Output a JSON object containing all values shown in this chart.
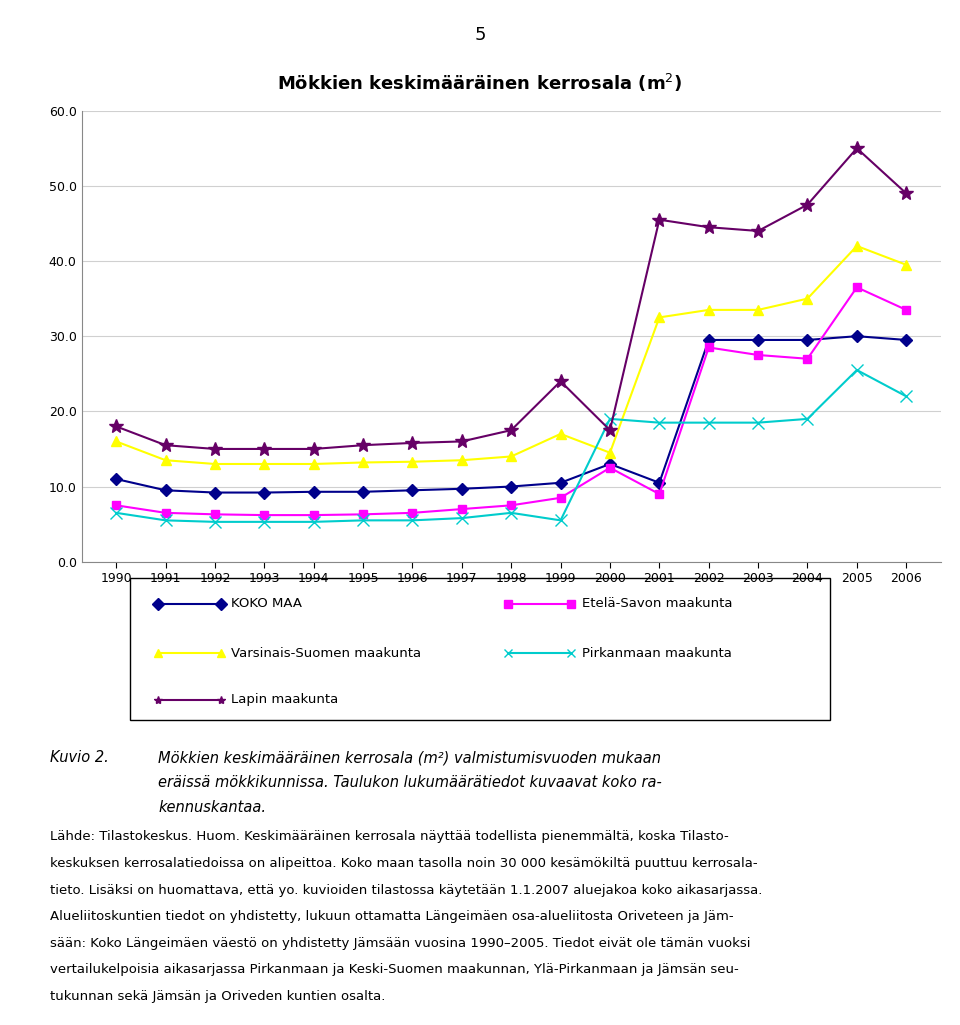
{
  "title_part1": "Mökkien keskimääräinen kerrosala (m",
  "title_sup": "2",
  "title_part2": ")",
  "page_number": "5",
  "years": [
    1990,
    1991,
    1992,
    1993,
    1994,
    1995,
    1996,
    1997,
    1998,
    1999,
    2000,
    2001,
    2002,
    2003,
    2004,
    2005,
    2006
  ],
  "series": {
    "KOKO MAA": [
      11.0,
      9.5,
      9.2,
      9.2,
      9.3,
      9.3,
      9.5,
      9.7,
      10.0,
      10.5,
      13.0,
      10.5,
      29.5,
      29.5,
      29.5,
      30.0,
      29.5
    ],
    "Etelä-Savon maakunta": [
      7.5,
      6.5,
      6.3,
      6.2,
      6.2,
      6.3,
      6.5,
      7.0,
      7.5,
      8.5,
      12.5,
      9.0,
      28.5,
      27.5,
      27.0,
      36.5,
      33.5
    ],
    "Varsinais-Suomen maakunta": [
      16.0,
      13.5,
      13.0,
      13.0,
      13.0,
      13.2,
      13.3,
      13.5,
      14.0,
      17.0,
      14.5,
      32.5,
      33.5,
      33.5,
      35.0,
      42.0,
      39.5
    ],
    "Pirkanmaan maakunta": [
      6.5,
      5.5,
      5.3,
      5.3,
      5.3,
      5.5,
      5.5,
      5.8,
      6.5,
      5.5,
      19.0,
      18.5,
      18.5,
      18.5,
      19.0,
      25.5,
      22.0
    ],
    "Lapin maakunta": [
      18.0,
      15.5,
      15.0,
      15.0,
      15.0,
      15.5,
      15.8,
      16.0,
      17.5,
      24.0,
      17.5,
      45.5,
      44.5,
      44.0,
      47.5,
      55.0,
      49.0
    ]
  },
  "colors": {
    "KOKO MAA": "#00008B",
    "Etelä-Savon maakunta": "#FF00FF",
    "Varsinais-Suomen maakunta": "#FFFF00",
    "Pirkanmaan maakunta": "#00CCCC",
    "Lapin maakunta": "#660066"
  },
  "markers": {
    "KOKO MAA": "D",
    "Etelä-Savon maakunta": "s",
    "Varsinais-Suomen maakunta": "^",
    "Pirkanmaan maakunta": "x",
    "Lapin maakunta": "*"
  },
  "marker_sizes": {
    "KOKO MAA": 6,
    "Etelä-Savon maakunta": 6,
    "Varsinais-Suomen maakunta": 7,
    "Pirkanmaan maakunta": 8,
    "Lapin maakunta": 10
  },
  "ylim": [
    0.0,
    60.0
  ],
  "yticks": [
    0.0,
    10.0,
    20.0,
    30.0,
    40.0,
    50.0,
    60.0
  ],
  "legend_col1": [
    "KOKO MAA",
    "Varsinais-Suomen maakunta",
    "Lapin maakunta"
  ],
  "legend_col2": [
    "Etelä-Savon maakunta",
    "Pirkanmaan maakunta"
  ],
  "caption_label": "Kuvio 2.",
  "caption_line1": "Mökkien keskimääräinen kerrosala (m²) valmistumisvuoden mukaan",
  "caption_line2": "eräissä mökkikunnissa. Taulukon lukumäärätiedot kuvaavat koko ra-",
  "caption_line3": "kennuskantaa.",
  "body_lines": [
    "Lähde: Tilastokeskus. Huom. Keskimääräinen kerrosala näyttää todellista pienemmältä, koska Tilasto-",
    "keskuksen kerrosalatiedoissa on alipeittoa. Koko maan tasolla noin 30 000 kesämökiltä puuttuu kerrosala-",
    "tieto. Lisäksi on huomattava, että yo. kuvioiden tilastossa käytetään 1.1.2007 aluejakoa koko aikasarjassa.",
    "Alueliitoskuntien tiedot on yhdistetty, lukuun ottamatta Längeimäen osa-alueliitosta Oriveteen ja Jäm-",
    "sään: Koko Längeimäen väestö on yhdistetty Jämsään vuosina 1990–2005. Tiedot eivät ole tämän vuoksi",
    "vertailukelpoisia aikasarjassa Pirkanmaan ja Keski-Suomen maakunnan, Ylä-Pirkanmaan ja Jämsän seu-",
    "tukunnan sekä Jämsän ja Oriveden kuntien osalta."
  ]
}
